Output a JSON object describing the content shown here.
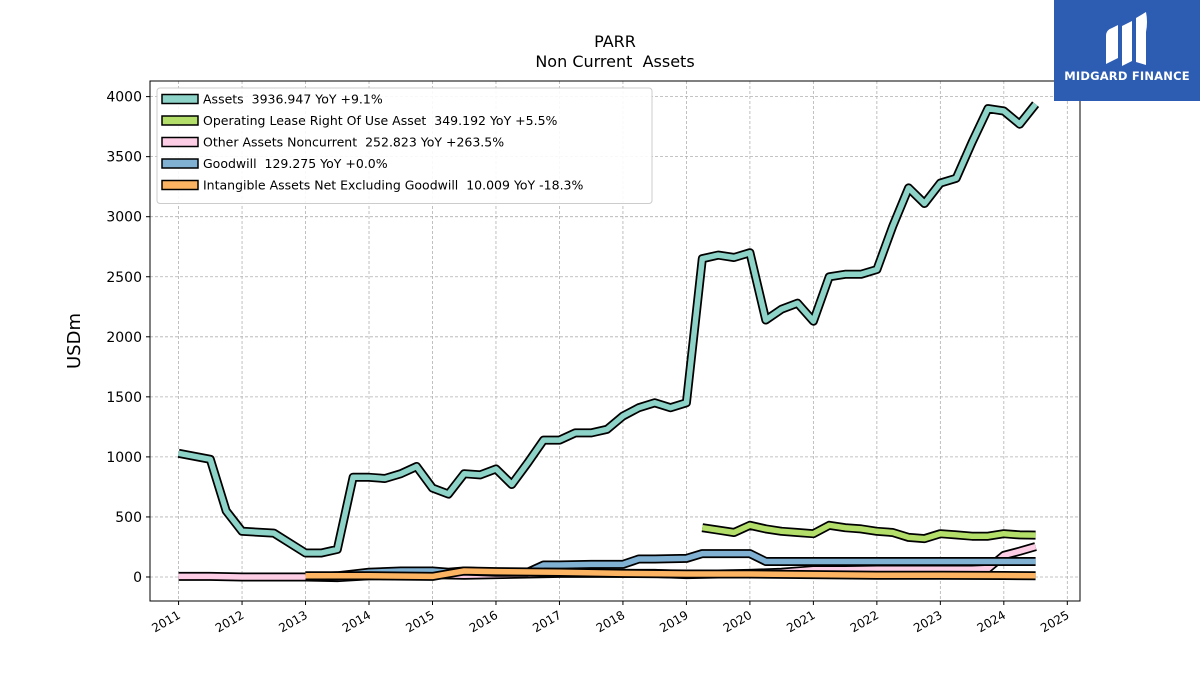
{
  "chart_data": {
    "type": "line",
    "title": "PARR",
    "subtitle": "Non Current  Assets",
    "xlabel": "",
    "ylabel": "USDm",
    "xlim": [
      2010.55,
      2025.2
    ],
    "ylim": [
      -200,
      4130
    ],
    "xticks": [
      2011,
      2012,
      2013,
      2014,
      2015,
      2016,
      2017,
      2018,
      2019,
      2020,
      2021,
      2022,
      2023,
      2024,
      2025
    ],
    "yticks": [
      0,
      500,
      1000,
      1500,
      2000,
      2500,
      3000,
      3500,
      4000
    ],
    "grid": true,
    "legend_position": "top-left",
    "series": [
      {
        "name": "Assets  3936.947 YoY +9.1%",
        "color": "#8dd3c7",
        "points": [
          [
            2011.0,
            1030
          ],
          [
            2011.5,
            980
          ],
          [
            2011.75,
            550
          ],
          [
            2012.0,
            380
          ],
          [
            2012.5,
            365
          ],
          [
            2013.0,
            200
          ],
          [
            2013.25,
            200
          ],
          [
            2013.5,
            230
          ],
          [
            2013.75,
            830
          ],
          [
            2014.0,
            830
          ],
          [
            2014.25,
            820
          ],
          [
            2014.5,
            860
          ],
          [
            2014.75,
            920
          ],
          [
            2015.0,
            740
          ],
          [
            2015.25,
            690
          ],
          [
            2015.5,
            860
          ],
          [
            2015.75,
            850
          ],
          [
            2016.0,
            900
          ],
          [
            2016.25,
            770
          ],
          [
            2016.5,
            950
          ],
          [
            2016.75,
            1140
          ],
          [
            2017.0,
            1140
          ],
          [
            2017.25,
            1200
          ],
          [
            2017.5,
            1200
          ],
          [
            2017.75,
            1230
          ],
          [
            2018.0,
            1340
          ],
          [
            2018.25,
            1410
          ],
          [
            2018.5,
            1450
          ],
          [
            2018.75,
            1410
          ],
          [
            2019.0,
            1450
          ],
          [
            2019.25,
            2650
          ],
          [
            2019.5,
            2680
          ],
          [
            2019.75,
            2660
          ],
          [
            2020.0,
            2700
          ],
          [
            2020.25,
            2140
          ],
          [
            2020.5,
            2230
          ],
          [
            2020.75,
            2280
          ],
          [
            2021.0,
            2130
          ],
          [
            2021.25,
            2500
          ],
          [
            2021.5,
            2520
          ],
          [
            2021.75,
            2520
          ],
          [
            2022.0,
            2560
          ],
          [
            2022.25,
            2920
          ],
          [
            2022.5,
            3240
          ],
          [
            2022.75,
            3110
          ],
          [
            2023.0,
            3280
          ],
          [
            2023.25,
            3320
          ],
          [
            2023.5,
            3620
          ],
          [
            2023.75,
            3900
          ],
          [
            2024.0,
            3880
          ],
          [
            2024.25,
            3770
          ],
          [
            2024.5,
            3937
          ]
        ]
      },
      {
        "name": "Operating Lease Right Of Use Asset  349.192 YoY +5.5%",
        "color": "#b3de69",
        "points": [
          [
            2019.25,
            410
          ],
          [
            2019.5,
            390
          ],
          [
            2019.75,
            370
          ],
          [
            2020.0,
            430
          ],
          [
            2020.25,
            400
          ],
          [
            2020.5,
            380
          ],
          [
            2020.75,
            370
          ],
          [
            2021.0,
            360
          ],
          [
            2021.25,
            430
          ],
          [
            2021.5,
            410
          ],
          [
            2021.75,
            400
          ],
          [
            2022.0,
            380
          ],
          [
            2022.25,
            370
          ],
          [
            2022.5,
            330
          ],
          [
            2022.75,
            320
          ],
          [
            2023.0,
            360
          ],
          [
            2023.25,
            350
          ],
          [
            2023.5,
            340
          ],
          [
            2023.75,
            340
          ],
          [
            2024.0,
            360
          ],
          [
            2024.25,
            350
          ],
          [
            2024.5,
            349
          ]
        ]
      },
      {
        "name": "Other Assets Noncurrent  252.823 YoY +263.5%",
        "color": "#fccde5",
        "points": [
          [
            2011.0,
            5
          ],
          [
            2011.5,
            5
          ],
          [
            2012.0,
            0
          ],
          [
            2012.5,
            0
          ],
          [
            2013.0,
            0
          ],
          [
            2013.5,
            -5
          ],
          [
            2014.0,
            10
          ],
          [
            2014.5,
            15
          ],
          [
            2015.0,
            20
          ],
          [
            2015.5,
            15
          ],
          [
            2016.0,
            20
          ],
          [
            2016.5,
            25
          ],
          [
            2017.0,
            30
          ],
          [
            2017.5,
            30
          ],
          [
            2018.0,
            30
          ],
          [
            2018.5,
            30
          ],
          [
            2019.0,
            20
          ],
          [
            2019.5,
            25
          ],
          [
            2020.0,
            30
          ],
          [
            2020.5,
            40
          ],
          [
            2021.0,
            60
          ],
          [
            2021.5,
            60
          ],
          [
            2022.0,
            65
          ],
          [
            2022.5,
            65
          ],
          [
            2023.0,
            65
          ],
          [
            2023.5,
            65
          ],
          [
            2023.75,
            70
          ],
          [
            2024.0,
            180
          ],
          [
            2024.25,
            215
          ],
          [
            2024.5,
            253
          ]
        ]
      },
      {
        "name": "Goodwill  129.275 YoY +0.0%",
        "color": "#80b1d3",
        "points": [
          [
            2013.0,
            0
          ],
          [
            2013.5,
            10
          ],
          [
            2014.0,
            40
          ],
          [
            2014.5,
            50
          ],
          [
            2015.0,
            50
          ],
          [
            2015.25,
            40
          ],
          [
            2015.5,
            50
          ],
          [
            2016.0,
            40
          ],
          [
            2016.5,
            40
          ],
          [
            2016.75,
            100
          ],
          [
            2017.0,
            100
          ],
          [
            2017.5,
            105
          ],
          [
            2018.0,
            105
          ],
          [
            2018.25,
            150
          ],
          [
            2018.5,
            150
          ],
          [
            2019.0,
            155
          ],
          [
            2019.25,
            195
          ],
          [
            2019.5,
            195
          ],
          [
            2020.0,
            195
          ],
          [
            2020.25,
            129
          ],
          [
            2021.0,
            129
          ],
          [
            2022.0,
            129
          ],
          [
            2023.0,
            129
          ],
          [
            2024.0,
            129
          ],
          [
            2024.5,
            129
          ]
        ]
      },
      {
        "name": "Intangible Assets Net Excluding Goodwill  10.009 YoY -18.3%",
        "color": "#fdb462",
        "points": [
          [
            2013.0,
            10
          ],
          [
            2014.0,
            10
          ],
          [
            2015.0,
            5
          ],
          [
            2015.5,
            50
          ],
          [
            2016.0,
            45
          ],
          [
            2017.0,
            40
          ],
          [
            2018.0,
            30
          ],
          [
            2019.0,
            25
          ],
          [
            2020.0,
            25
          ],
          [
            2021.0,
            20
          ],
          [
            2022.0,
            15
          ],
          [
            2023.0,
            15
          ],
          [
            2024.0,
            12
          ],
          [
            2024.5,
            10
          ]
        ]
      }
    ]
  },
  "logo": {
    "text": "MIDGARD FINANCE"
  }
}
